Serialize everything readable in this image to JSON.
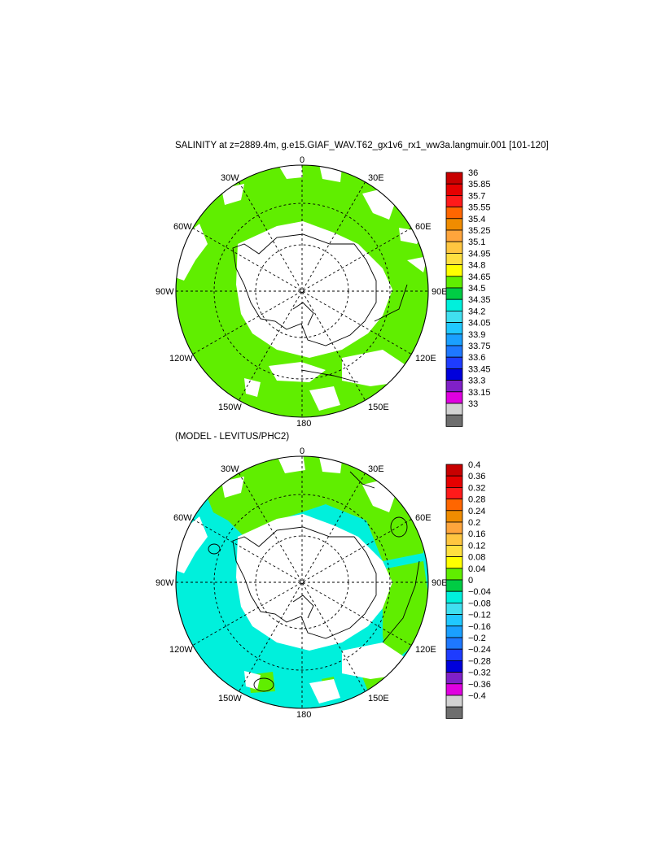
{
  "figure": {
    "title": "SALINITY at z=2889.4m, g.e15.GIAF_WAV.T62_gx1v6_rx1_ww3a.langmuir.001 [101-120]",
    "subtitle": "(MODEL - LEVITUS/PHC2)"
  },
  "map_labels": {
    "lon_0": "0",
    "lon_30e": "30E",
    "lon_60e": "60E",
    "lon_90e": "90E",
    "lon_120e": "120E",
    "lon_150e": "150E",
    "lon_180": "180",
    "lon_150w": "150W",
    "lon_120w": "120W",
    "lon_90w": "90W",
    "lon_60w": "60W",
    "lon_30w": "30W"
  },
  "legend_top": {
    "labels": [
      "36",
      "35.85",
      "35.7",
      "35.55",
      "35.4",
      "35.25",
      "35.1",
      "34.95",
      "34.8",
      "34.65",
      "34.5",
      "34.35",
      "34.2",
      "34.05",
      "33.9",
      "33.75",
      "33.6",
      "33.45",
      "33.3",
      "33.15",
      "33"
    ],
    "colors": [
      "#c80000",
      "#e60000",
      "#ff1a1a",
      "#ff6600",
      "#f08c00",
      "#ffa53c",
      "#ffc640",
      "#ffe040",
      "#ffff00",
      "#60ee00",
      "#00cc44",
      "#00f0dc",
      "#40e0f0",
      "#20c8ff",
      "#1aa0ff",
      "#1e78ff",
      "#1e3cff",
      "#0000dc",
      "#8020c8",
      "#e000e0",
      "#d2d2d2",
      "#6e6e6e"
    ]
  },
  "legend_bottom": {
    "labels": [
      "0.4",
      "0.36",
      "0.32",
      "0.28",
      "0.24",
      "0.2",
      "0.16",
      "0.12",
      "0.08",
      "0.04",
      "0",
      "−0.04",
      "−0.08",
      "−0.12",
      "−0.16",
      "−0.2",
      "−0.24",
      "−0.28",
      "−0.32",
      "−0.36",
      "−0.4"
    ],
    "colors": [
      "#c80000",
      "#e60000",
      "#ff1a1a",
      "#ff6600",
      "#f08c00",
      "#ffa53c",
      "#ffc640",
      "#ffe040",
      "#ffff00",
      "#60ee00",
      "#00cc44",
      "#00f0dc",
      "#40e0f0",
      "#20c8ff",
      "#1aa0ff",
      "#1e78ff",
      "#1e3cff",
      "#0000dc",
      "#8020c8",
      "#e000e0",
      "#d2d2d2",
      "#6e6e6e"
    ]
  },
  "fields": {
    "top_dominant_range": "34.65 - 34.8",
    "top_dominant_color": "#60ee00",
    "bottom_positive_color": "#60ee00",
    "bottom_near_zero_color": "#00f0dc",
    "land_color": "#ffffff"
  }
}
